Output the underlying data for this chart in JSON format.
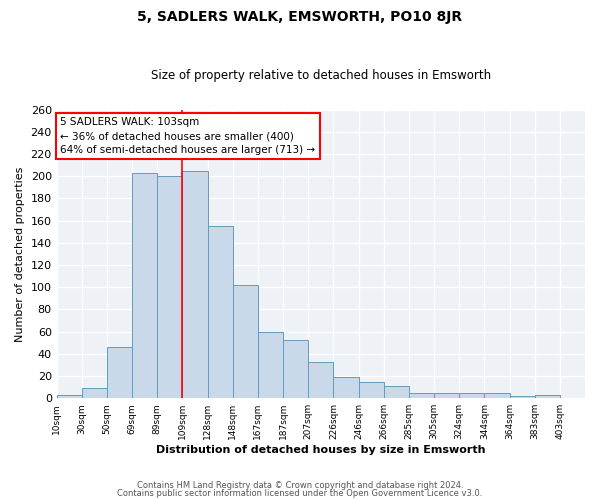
{
  "title": "5, SADLERS WALK, EMSWORTH, PO10 8JR",
  "subtitle": "Size of property relative to detached houses in Emsworth",
  "xlabel": "Distribution of detached houses by size in Emsworth",
  "ylabel": "Number of detached properties",
  "bar_color": "#c9d9ea",
  "bar_edge_color": "#6699bb",
  "background_color": "#eef2f7",
  "grid_color": "#ffffff",
  "tick_labels": [
    "10sqm",
    "30sqm",
    "50sqm",
    "69sqm",
    "89sqm",
    "109sqm",
    "128sqm",
    "148sqm",
    "167sqm",
    "187sqm",
    "207sqm",
    "226sqm",
    "246sqm",
    "266sqm",
    "285sqm",
    "305sqm",
    "324sqm",
    "344sqm",
    "364sqm",
    "383sqm",
    "403sqm"
  ],
  "counts": [
    3,
    9,
    46,
    203,
    200,
    205,
    155,
    102,
    60,
    52,
    33,
    19,
    15,
    11,
    5,
    5,
    5,
    5,
    2,
    3,
    0
  ],
  "n_bins": 21,
  "marker_bin": 5,
  "ylim": [
    0,
    260
  ],
  "yticks": [
    0,
    20,
    40,
    60,
    80,
    100,
    120,
    140,
    160,
    180,
    200,
    220,
    240,
    260
  ],
  "annotation_title": "5 SADLERS WALK: 103sqm",
  "annotation_line1": "← 36% of detached houses are smaller (400)",
  "annotation_line2": "64% of semi-detached houses are larger (713) →",
  "footer1": "Contains HM Land Registry data © Crown copyright and database right 2024.",
  "footer2": "Contains public sector information licensed under the Open Government Licence v3.0."
}
